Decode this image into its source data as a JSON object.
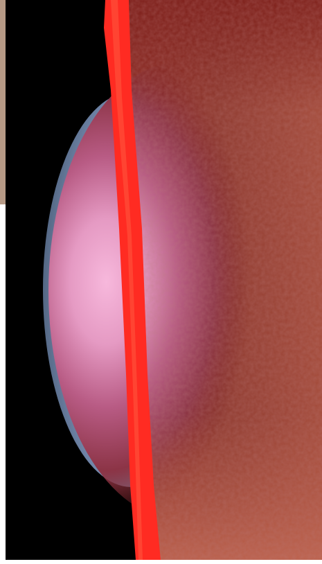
{
  "image": {
    "description_colors": {
      "background": "#000000",
      "border": "#ffffff",
      "sphere_light": "#a6bde0",
      "sphere_dark": "#5f7691",
      "slash": "#ff2a22",
      "surface_dark": "#7a1c17",
      "surface_mid": "#9e4838",
      "glow_pink": "#f2a6d1",
      "glow_magenta": "#a84a70",
      "corner_tint": "#c98a70"
    }
  }
}
